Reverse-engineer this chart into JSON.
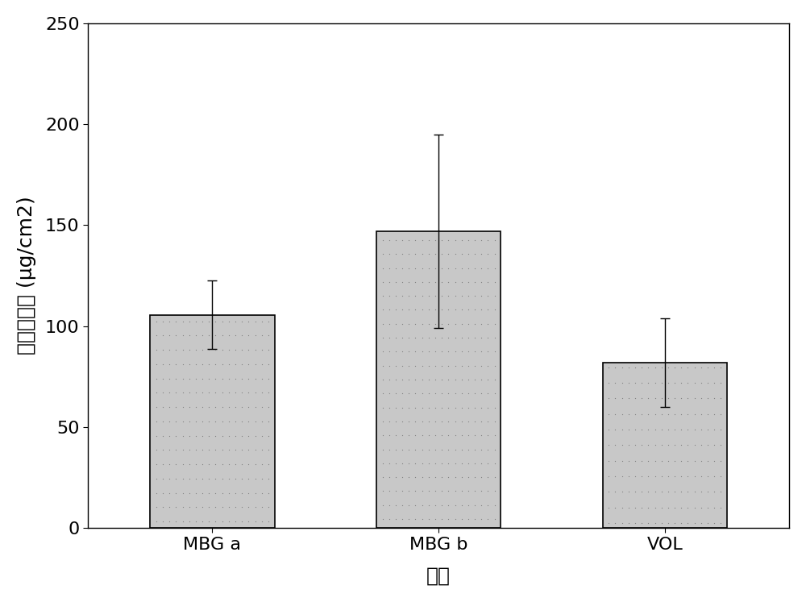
{
  "categories": [
    "MBG a",
    "MBG b",
    "VOL"
  ],
  "values": [
    105.5,
    147.0,
    82.0
  ],
  "errors": [
    17.0,
    48.0,
    22.0
  ],
  "bar_color": "#C8C8C8",
  "bar_edgecolor": "#000000",
  "ylim": [
    0,
    250
  ],
  "yticks": [
    0,
    50,
    100,
    150,
    200,
    250
  ],
  "ylabel_chinese": "皮肤残药量",
  "ylabel_unit": "(μg/cm2)",
  "xlabel": "样品",
  "bar_width": 0.55,
  "figsize": [
    10.0,
    7.47
  ],
  "dpi": 100,
  "background_color": "#ffffff",
  "capsize": 4,
  "ecolor": "#000000",
  "elinewidth": 1.0,
  "tick_fontsize": 16,
  "label_fontsize": 18,
  "chinese_fontsize": 18
}
